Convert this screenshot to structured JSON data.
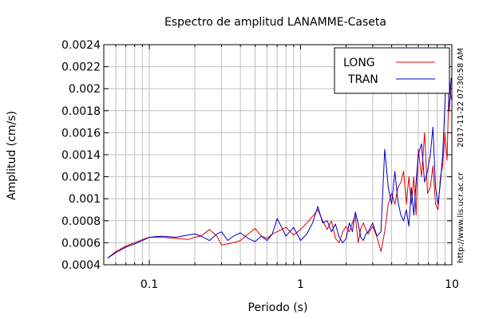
{
  "chart_data": {
    "type": "line",
    "title": "Espectro de amplitud LANAMME-Caseta",
    "xlabel": "Periodo (s)",
    "ylabel": "Amplitud (cm/s)",
    "x_scale": "log",
    "xlim": [
      0.05,
      10
    ],
    "ylim": [
      0.0004,
      0.0024
    ],
    "x_ticks": [
      {
        "value": 0.1,
        "label": "0.1"
      },
      {
        "value": 1,
        "label": "1"
      },
      {
        "value": 10,
        "label": "10"
      }
    ],
    "y_ticks": [
      {
        "value": 0.0004,
        "label": "0.0004"
      },
      {
        "value": 0.0006,
        "label": "0.0006"
      },
      {
        "value": 0.0008,
        "label": "0.0008"
      },
      {
        "value": 0.001,
        "label": "0.001"
      },
      {
        "value": 0.0012,
        "label": "0.0012"
      },
      {
        "value": 0.0014,
        "label": "0.0014"
      },
      {
        "value": 0.0016,
        "label": "0.0016"
      },
      {
        "value": 0.0018,
        "label": "0.0018"
      },
      {
        "value": 0.002,
        "label": "0.002"
      },
      {
        "value": 0.0022,
        "label": "0.0022"
      },
      {
        "value": 0.0024,
        "label": "0.0024"
      }
    ],
    "grid": true,
    "legend_position": "top-right",
    "series": [
      {
        "name": "LONG",
        "color": "#e00000",
        "x": [
          0.053,
          0.06,
          0.07,
          0.08,
          0.09,
          0.1,
          0.12,
          0.15,
          0.18,
          0.2,
          0.22,
          0.25,
          0.28,
          0.3,
          0.33,
          0.36,
          0.4,
          0.45,
          0.5,
          0.55,
          0.6,
          0.65,
          0.7,
          0.8,
          0.9,
          1.0,
          1.1,
          1.2,
          1.3,
          1.4,
          1.5,
          1.6,
          1.7,
          1.8,
          1.9,
          2.0,
          2.1,
          2.2,
          2.3,
          2.4,
          2.5,
          2.6,
          2.7,
          2.8,
          3.0,
          3.2,
          3.4,
          3.6,
          3.8,
          4.0,
          4.2,
          4.4,
          4.6,
          4.8,
          5.0,
          5.2,
          5.4,
          5.6,
          5.8,
          6.0,
          6.3,
          6.6,
          6.9,
          7.2,
          7.5,
          7.8,
          8.1,
          8.4,
          8.7,
          9.0,
          9.3,
          9.6,
          9.9
        ],
        "y": [
          0.00046,
          0.00052,
          0.00057,
          0.0006,
          0.00063,
          0.00065,
          0.00065,
          0.00064,
          0.00063,
          0.00065,
          0.00066,
          0.00072,
          0.00066,
          0.00058,
          0.00059,
          0.0006,
          0.00062,
          0.00068,
          0.00073,
          0.00066,
          0.00064,
          0.00068,
          0.0007,
          0.00074,
          0.00067,
          0.00072,
          0.00078,
          0.00084,
          0.0009,
          0.0008,
          0.00072,
          0.0008,
          0.00064,
          0.0006,
          0.0007,
          0.00075,
          0.0007,
          0.00078,
          0.00085,
          0.0006,
          0.00073,
          0.00078,
          0.00072,
          0.00068,
          0.00075,
          0.00065,
          0.00052,
          0.0007,
          0.00095,
          0.00105,
          0.00095,
          0.0011,
          0.00115,
          0.00125,
          0.00095,
          0.0012,
          0.00095,
          0.0012,
          0.00085,
          0.00145,
          0.0012,
          0.0016,
          0.00105,
          0.0011,
          0.0013,
          0.00095,
          0.0009,
          0.0012,
          0.0013,
          0.0016,
          0.00135,
          0.0021,
          0.0019
        ]
      },
      {
        "name": "TRAN",
        "color": "#0000c8",
        "x": [
          0.053,
          0.06,
          0.07,
          0.08,
          0.09,
          0.1,
          0.12,
          0.15,
          0.18,
          0.2,
          0.22,
          0.25,
          0.28,
          0.3,
          0.33,
          0.36,
          0.4,
          0.45,
          0.5,
          0.55,
          0.6,
          0.65,
          0.7,
          0.8,
          0.9,
          1.0,
          1.1,
          1.2,
          1.3,
          1.4,
          1.5,
          1.6,
          1.7,
          1.8,
          1.9,
          2.0,
          2.1,
          2.2,
          2.3,
          2.4,
          2.5,
          2.6,
          2.7,
          2.8,
          3.0,
          3.2,
          3.4,
          3.6,
          3.8,
          4.0,
          4.2,
          4.4,
          4.6,
          4.8,
          5.0,
          5.2,
          5.4,
          5.6,
          5.8,
          6.0,
          6.3,
          6.6,
          6.9,
          7.2,
          7.5,
          7.8,
          8.1,
          8.4,
          8.7,
          9.0,
          9.3,
          9.6,
          9.9
        ],
        "y": [
          0.00046,
          0.00051,
          0.00056,
          0.00059,
          0.00062,
          0.00065,
          0.00066,
          0.00065,
          0.00067,
          0.00068,
          0.00066,
          0.00062,
          0.00068,
          0.0007,
          0.00062,
          0.00066,
          0.00069,
          0.00064,
          0.00061,
          0.00066,
          0.00062,
          0.00068,
          0.00082,
          0.00066,
          0.00074,
          0.00062,
          0.00068,
          0.00078,
          0.00093,
          0.00078,
          0.0008,
          0.0007,
          0.00077,
          0.00065,
          0.0006,
          0.00064,
          0.00078,
          0.0007,
          0.00088,
          0.00078,
          0.00065,
          0.00062,
          0.00068,
          0.0007,
          0.00078,
          0.00066,
          0.0007,
          0.00145,
          0.0011,
          0.00095,
          0.00125,
          0.00098,
          0.00085,
          0.0008,
          0.0009,
          0.00075,
          0.0011,
          0.00085,
          0.00115,
          0.0014,
          0.0015,
          0.00115,
          0.00125,
          0.0014,
          0.00165,
          0.0011,
          0.00095,
          0.00115,
          0.0014,
          0.00185,
          0.0023,
          0.0018,
          0.0021
        ]
      }
    ],
    "side_text": {
      "url": "http://www.lis.ucr.ac.cr",
      "timestamp": "2017-11-22 07:30:58 AM"
    }
  }
}
